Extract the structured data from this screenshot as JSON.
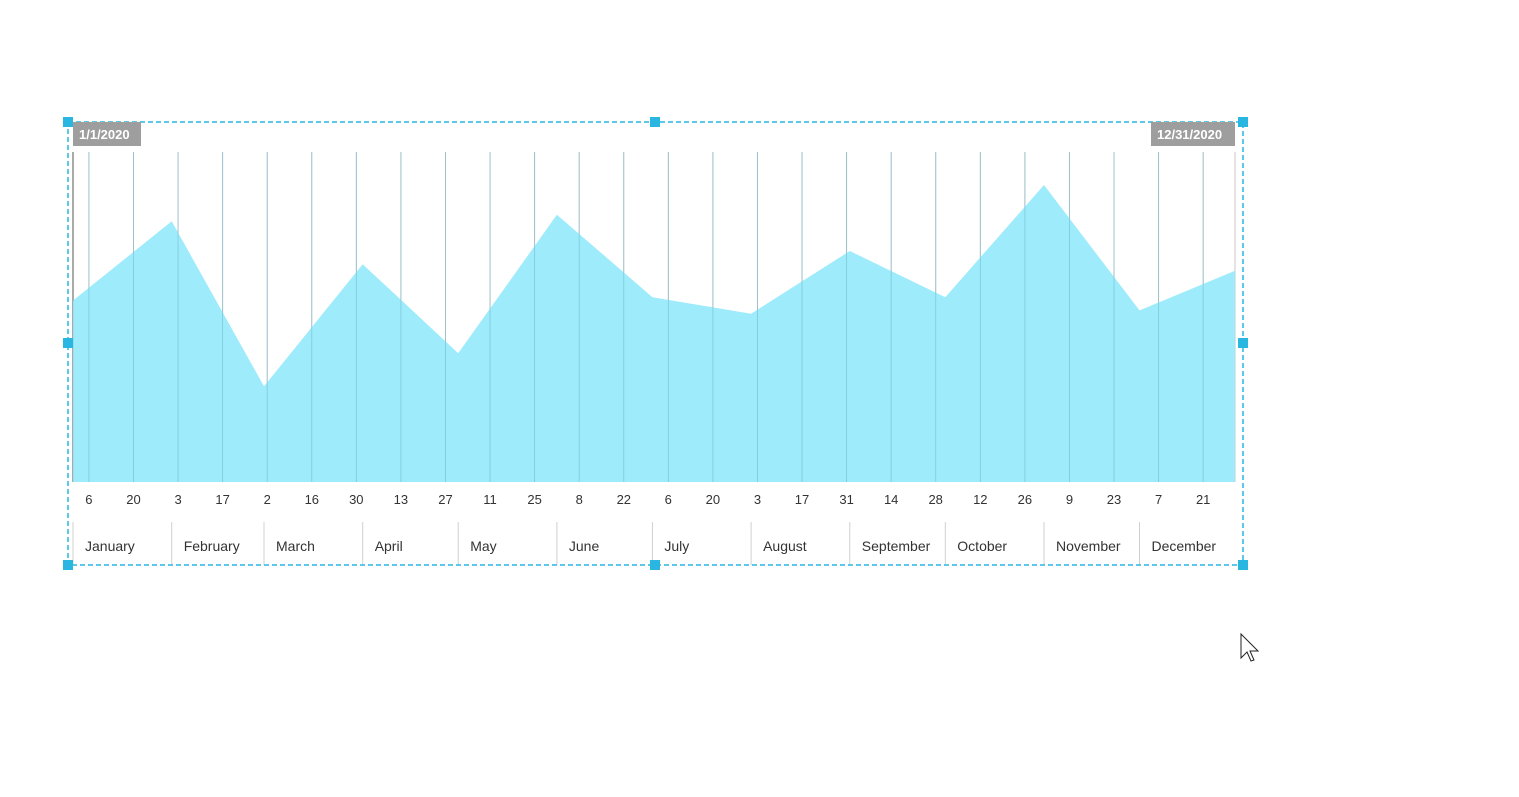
{
  "chart_data": {
    "type": "area",
    "title": "",
    "xlabel": "",
    "ylabel": "",
    "x_range": [
      "2020-01-01",
      "2020-12-31"
    ],
    "range_start_label": "1/1/2020",
    "range_end_label": "12/31/2020",
    "grid": true,
    "y_axis_visible": false,
    "ylim": [
      0,
      100
    ],
    "series": [
      {
        "points": [
          {
            "x": "2020-01-01",
            "y": 55
          },
          {
            "x": "2020-02-01",
            "y": 79
          },
          {
            "x": "2020-03-01",
            "y": 29
          },
          {
            "x": "2020-04-01",
            "y": 66
          },
          {
            "x": "2020-05-01",
            "y": 39
          },
          {
            "x": "2020-06-01",
            "y": 81
          },
          {
            "x": "2020-07-01",
            "y": 56
          },
          {
            "x": "2020-08-01",
            "y": 51
          },
          {
            "x": "2020-09-01",
            "y": 70
          },
          {
            "x": "2020-10-01",
            "y": 56
          },
          {
            "x": "2020-11-01",
            "y": 90
          },
          {
            "x": "2020-12-01",
            "y": 52
          },
          {
            "x": "2020-12-31",
            "y": 64
          }
        ]
      }
    ],
    "week_ticks": [
      {
        "date": "2020-01-06",
        "label": "6"
      },
      {
        "date": "2020-01-20",
        "label": "20"
      },
      {
        "date": "2020-02-03",
        "label": "3"
      },
      {
        "date": "2020-02-17",
        "label": "17"
      },
      {
        "date": "2020-03-02",
        "label": "2"
      },
      {
        "date": "2020-03-16",
        "label": "16"
      },
      {
        "date": "2020-03-30",
        "label": "30"
      },
      {
        "date": "2020-04-13",
        "label": "13"
      },
      {
        "date": "2020-04-27",
        "label": "27"
      },
      {
        "date": "2020-05-11",
        "label": "11"
      },
      {
        "date": "2020-05-25",
        "label": "25"
      },
      {
        "date": "2020-06-08",
        "label": "8"
      },
      {
        "date": "2020-06-22",
        "label": "22"
      },
      {
        "date": "2020-07-06",
        "label": "6"
      },
      {
        "date": "2020-07-20",
        "label": "20"
      },
      {
        "date": "2020-08-03",
        "label": "3"
      },
      {
        "date": "2020-08-17",
        "label": "17"
      },
      {
        "date": "2020-08-31",
        "label": "31"
      },
      {
        "date": "2020-09-14",
        "label": "14"
      },
      {
        "date": "2020-09-28",
        "label": "28"
      },
      {
        "date": "2020-10-12",
        "label": "12"
      },
      {
        "date": "2020-10-26",
        "label": "26"
      },
      {
        "date": "2020-11-09",
        "label": "9"
      },
      {
        "date": "2020-11-23",
        "label": "23"
      },
      {
        "date": "2020-12-07",
        "label": "7"
      },
      {
        "date": "2020-12-21",
        "label": "21"
      }
    ],
    "months": [
      {
        "start": "2020-01-01",
        "label": "January"
      },
      {
        "start": "2020-02-01",
        "label": "February"
      },
      {
        "start": "2020-03-01",
        "label": "March"
      },
      {
        "start": "2020-04-01",
        "label": "April"
      },
      {
        "start": "2020-05-01",
        "label": "May"
      },
      {
        "start": "2020-06-01",
        "label": "June"
      },
      {
        "start": "2020-07-01",
        "label": "July"
      },
      {
        "start": "2020-08-01",
        "label": "August"
      },
      {
        "start": "2020-09-01",
        "label": "September"
      },
      {
        "start": "2020-10-01",
        "label": "October"
      },
      {
        "start": "2020-11-01",
        "label": "November"
      },
      {
        "start": "2020-12-01",
        "label": "December"
      }
    ],
    "colors": {
      "area_fill": "#8fe8fb",
      "gridline": "#c8c8c8",
      "selection": "#29b6e0",
      "date_tag": "#9e9e9e"
    }
  },
  "cursor": {
    "icon": "mouse-pointer-icon"
  }
}
